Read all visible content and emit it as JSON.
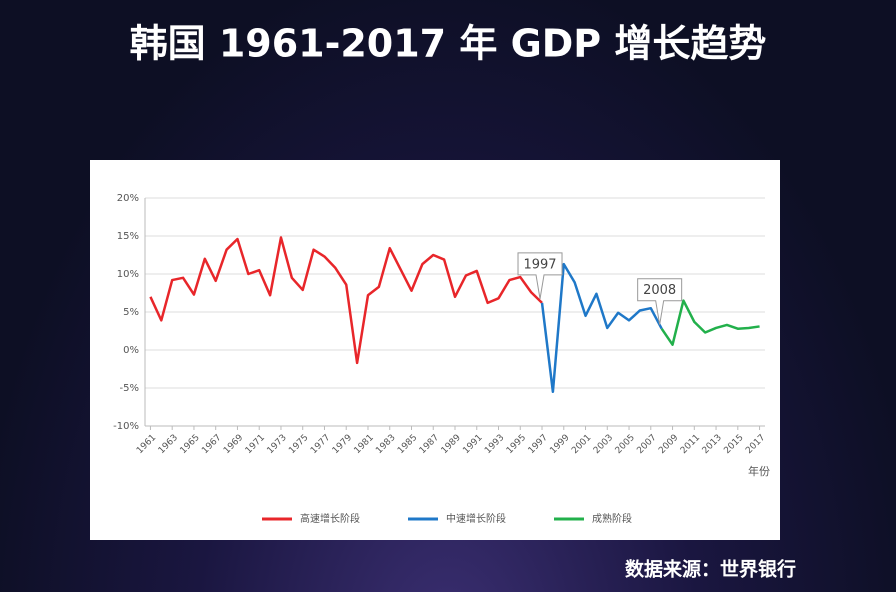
{
  "title": "韩国 1961-2017 年 GDP 增长趋势",
  "source": "数据来源：世界银行",
  "chart_data": {
    "type": "line",
    "x_label": "年份",
    "xlim": [
      1960.5,
      2017.5
    ],
    "xticks": [
      1961,
      1963,
      1965,
      1967,
      1969,
      1971,
      1973,
      1975,
      1977,
      1979,
      1981,
      1983,
      1985,
      1987,
      1989,
      1991,
      1993,
      1995,
      1997,
      1999,
      2001,
      2003,
      2005,
      2007,
      2009,
      2011,
      2013,
      2015,
      2017
    ],
    "ylim": [
      -10,
      20
    ],
    "yticks": [
      {
        "value": -10,
        "label": "-10%"
      },
      {
        "value": -5,
        "label": "-5%"
      },
      {
        "value": 0,
        "label": "0%"
      },
      {
        "value": 5,
        "label": "5%"
      },
      {
        "value": 10,
        "label": "10%"
      },
      {
        "value": 15,
        "label": "15%"
      },
      {
        "value": 20,
        "label": "20%"
      }
    ],
    "grid": true,
    "series": [
      {
        "name": "高速增长阶段",
        "color": "#e8262a",
        "x": [
          1961,
          1962,
          1963,
          1964,
          1965,
          1966,
          1967,
          1968,
          1969,
          1970,
          1971,
          1972,
          1973,
          1974,
          1975,
          1976,
          1977,
          1978,
          1979,
          1980,
          1981,
          1982,
          1983,
          1984,
          1985,
          1986,
          1987,
          1988,
          1989,
          1990,
          1991,
          1992,
          1993,
          1994,
          1995,
          1996,
          1997
        ],
        "values": [
          7.0,
          3.9,
          9.2,
          9.5,
          7.3,
          12.0,
          9.1,
          13.2,
          14.6,
          10.0,
          10.5,
          7.2,
          14.8,
          9.5,
          7.9,
          13.2,
          12.3,
          10.8,
          8.6,
          -1.7,
          7.2,
          8.3,
          13.4,
          10.6,
          7.8,
          11.3,
          12.5,
          11.9,
          7.0,
          9.8,
          10.4,
          6.2,
          6.8,
          9.2,
          9.6,
          7.6,
          6.2
        ]
      },
      {
        "name": "中速增长阶段",
        "color": "#1f78c8",
        "x": [
          1997,
          1998,
          1999,
          2000,
          2001,
          2002,
          2003,
          2004,
          2005,
          2006,
          2007,
          2008
        ],
        "values": [
          6.2,
          -5.5,
          11.3,
          8.9,
          4.5,
          7.4,
          2.9,
          4.9,
          3.9,
          5.2,
          5.5,
          2.8
        ]
      },
      {
        "name": "成熟阶段",
        "color": "#22b04b",
        "x": [
          2008,
          2009,
          2010,
          2011,
          2012,
          2013,
          2014,
          2015,
          2016,
          2017
        ],
        "values": [
          2.8,
          0.7,
          6.5,
          3.7,
          2.3,
          2.9,
          3.3,
          2.8,
          2.9,
          3.1
        ]
      }
    ],
    "annotations": [
      {
        "text": "1997",
        "x": 1997
      },
      {
        "text": "2008",
        "x": 2008
      }
    ]
  }
}
